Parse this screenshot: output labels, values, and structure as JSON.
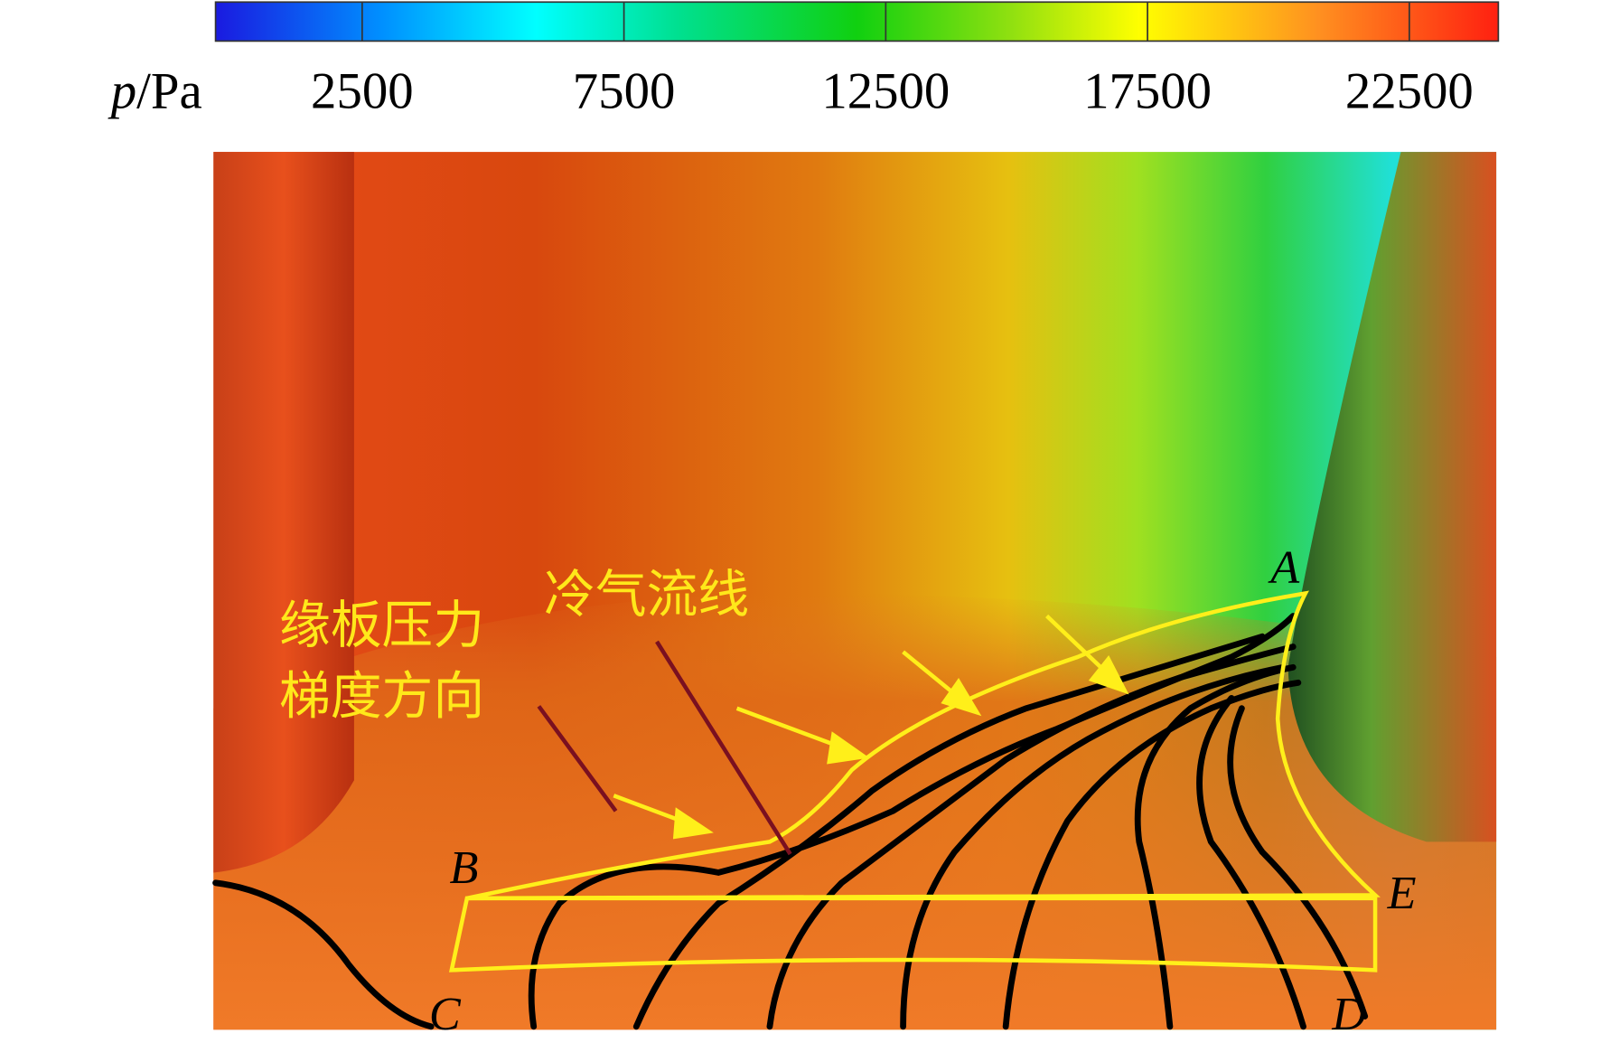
{
  "colorbar": {
    "label": {
      "symbol": "p",
      "unit": "/Pa"
    },
    "range": [
      -300,
      24200
    ],
    "ticks": [
      2500,
      7500,
      12500,
      17500,
      22500
    ]
  },
  "annotations": {
    "pressure_gradient": [
      "缘板压力",
      "梯度方向"
    ],
    "coolant_streamline": "冷气流线"
  },
  "points": [
    "A",
    "B",
    "C",
    "D",
    "E"
  ]
}
